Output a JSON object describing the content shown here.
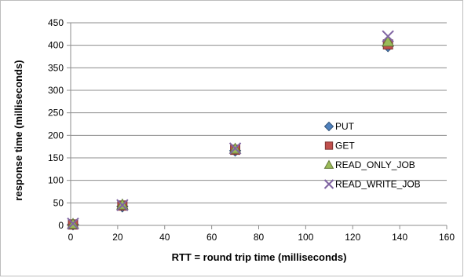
{
  "chart_data": {
    "type": "scatter",
    "title": "",
    "xlabel": "RTT = round trip time (milliseconds)",
    "ylabel": "response time (milliseconds)",
    "xlim": [
      0,
      160
    ],
    "ylim": [
      0,
      450
    ],
    "xticks": [
      0,
      20,
      40,
      60,
      80,
      100,
      120,
      140,
      160
    ],
    "yticks": [
      0,
      50,
      100,
      150,
      200,
      250,
      300,
      350,
      400,
      450
    ],
    "grid": "horizontal",
    "legend_position": "right",
    "series": [
      {
        "name": "PUT",
        "marker": "diamond",
        "color": "#4f81bd",
        "x": [
          1,
          22,
          70,
          135
        ],
        "y": [
          2,
          42,
          166,
          398
        ]
      },
      {
        "name": "GET",
        "marker": "square",
        "color": "#c0504d",
        "x": [
          1,
          22,
          70,
          135
        ],
        "y": [
          2,
          44,
          168,
          402
        ]
      },
      {
        "name": "READ_ONLY_JOB",
        "marker": "triangle",
        "color": "#9bbb59",
        "x": [
          1,
          22,
          70,
          135
        ],
        "y": [
          3,
          46,
          170,
          408
        ]
      },
      {
        "name": "READ_WRITE_JOB",
        "marker": "x",
        "color": "#8064a2",
        "x": [
          1,
          22,
          70,
          135
        ],
        "y": [
          4,
          45,
          171,
          420
        ]
      }
    ]
  }
}
